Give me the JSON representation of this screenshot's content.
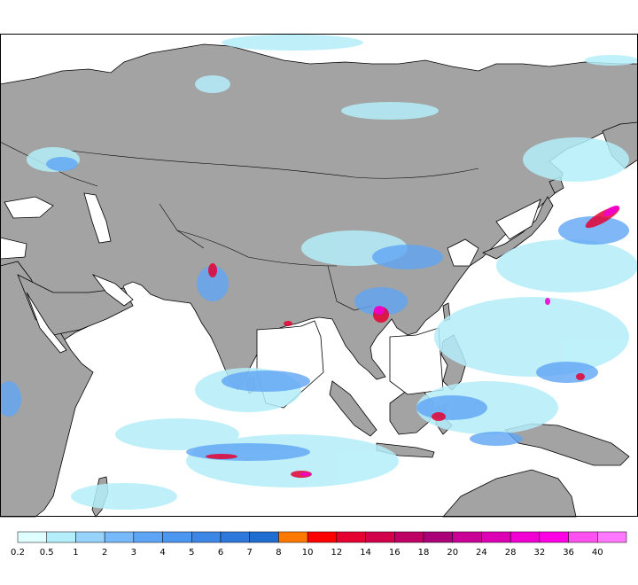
{
  "map": {
    "background": "#ffffff",
    "land_color": "#a3a3a3",
    "coast_color": "#000000"
  },
  "legend": {
    "colors": [
      "#e0ffff",
      "#b4eefa",
      "#96d2fa",
      "#78b9fa",
      "#5fa5f5",
      "#4b96f0",
      "#3c87e6",
      "#2d78dc",
      "#1e6ed2",
      "#ff7800",
      "#ff0000",
      "#e60032",
      "#d2004b",
      "#be0064",
      "#aa0078",
      "#c80096",
      "#dc00b4",
      "#f000d2",
      "#ff00e6",
      "#ff50f0",
      "#ff78ff"
    ],
    "labels": [
      "0.2",
      "0.5",
      "1",
      "2",
      "3",
      "4",
      "5",
      "6",
      "7",
      "8",
      "10",
      "12",
      "14",
      "16",
      "18",
      "20",
      "24",
      "28",
      "32",
      "36",
      "40"
    ]
  }
}
